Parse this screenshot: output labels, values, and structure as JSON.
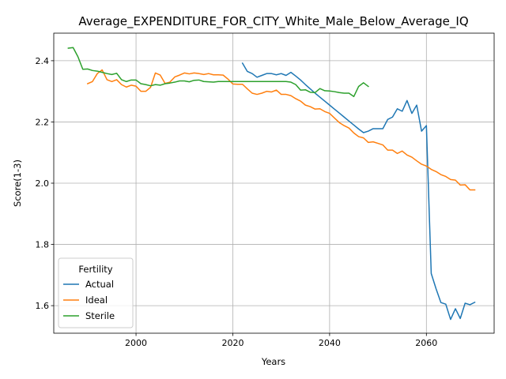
{
  "chart_data": {
    "type": "line",
    "title": "Average_EXPENDITURE_FOR_CITY_White_Male_Below_Average_IQ",
    "xlabel": "Years",
    "ylabel": "Score(1-3)",
    "xlim": [
      1983,
      2074
    ],
    "ylim": [
      1.51,
      2.49
    ],
    "xticks": [
      2000,
      2020,
      2040,
      2060
    ],
    "yticks": [
      1.6,
      1.8,
      2.0,
      2.2,
      2.4
    ],
    "xtick_labels": [
      "2000",
      "2020",
      "2040",
      "2060"
    ],
    "ytick_labels": [
      "1.6",
      "1.8",
      "2.0",
      "2.2",
      "2.4"
    ],
    "grid": true,
    "legend": {
      "title": "Fertility",
      "position": "lower-left"
    },
    "series": [
      {
        "name": "Actual",
        "color": "#1f77b4",
        "x": [
          2022,
          2023,
          2024,
          2025,
          2026,
          2027,
          2028,
          2029,
          2030,
          2031,
          2032,
          2033,
          2034,
          2035,
          2036,
          2037,
          2038,
          2039,
          2040,
          2041,
          2042,
          2043,
          2044,
          2045,
          2046,
          2047,
          2048,
          2049,
          2050,
          2051,
          2052,
          2053,
          2054,
          2055,
          2056,
          2057,
          2058,
          2059,
          2060,
          2061,
          2062,
          2063,
          2064,
          2065,
          2066,
          2067,
          2068,
          2069,
          2070
        ],
        "y": [
          2.392,
          2.365,
          2.358,
          2.346,
          2.352,
          2.358,
          2.358,
          2.354,
          2.358,
          2.352,
          2.362,
          2.35,
          2.337,
          2.322,
          2.308,
          2.294,
          2.281,
          2.268,
          2.255,
          2.242,
          2.229,
          2.216,
          2.203,
          2.19,
          2.177,
          2.165,
          2.17,
          2.178,
          2.178,
          2.178,
          2.208,
          2.216,
          2.243,
          2.235,
          2.27,
          2.228,
          2.255,
          2.17,
          2.188,
          1.705,
          1.655,
          1.61,
          1.605,
          1.555,
          1.59,
          1.558,
          1.608,
          1.603,
          1.611
        ]
      },
      {
        "name": "Ideal",
        "color": "#ff7f0e",
        "x": [
          1990,
          1991,
          1992,
          1993,
          1994,
          1995,
          1996,
          1997,
          1998,
          1999,
          2000,
          2001,
          2002,
          2003,
          2004,
          2005,
          2006,
          2007,
          2008,
          2009,
          2010,
          2011,
          2012,
          2013,
          2014,
          2015,
          2016,
          2017,
          2018,
          2019,
          2020,
          2021,
          2022,
          2023,
          2024,
          2025,
          2026,
          2027,
          2028,
          2029,
          2030,
          2031,
          2032,
          2033,
          2034,
          2035,
          2036,
          2037,
          2038,
          2039,
          2040,
          2041,
          2042,
          2043,
          2044,
          2045,
          2046,
          2047,
          2048,
          2049,
          2050,
          2051,
          2052,
          2053,
          2054,
          2055,
          2056,
          2057,
          2058,
          2059,
          2060,
          2061,
          2062,
          2063,
          2064,
          2065,
          2066,
          2067,
          2068,
          2069,
          2070
        ],
        "y": [
          2.325,
          2.332,
          2.358,
          2.37,
          2.338,
          2.332,
          2.338,
          2.322,
          2.314,
          2.32,
          2.317,
          2.3,
          2.3,
          2.313,
          2.36,
          2.353,
          2.326,
          2.33,
          2.347,
          2.353,
          2.36,
          2.357,
          2.36,
          2.358,
          2.355,
          2.358,
          2.354,
          2.354,
          2.353,
          2.34,
          2.324,
          2.323,
          2.323,
          2.308,
          2.294,
          2.29,
          2.294,
          2.3,
          2.298,
          2.304,
          2.29,
          2.29,
          2.286,
          2.276,
          2.268,
          2.255,
          2.25,
          2.242,
          2.243,
          2.234,
          2.228,
          2.213,
          2.198,
          2.188,
          2.18,
          2.164,
          2.152,
          2.148,
          2.133,
          2.135,
          2.13,
          2.125,
          2.108,
          2.108,
          2.097,
          2.105,
          2.092,
          2.085,
          2.073,
          2.062,
          2.056,
          2.045,
          2.038,
          2.028,
          2.022,
          2.012,
          2.01,
          1.994,
          1.995,
          1.978,
          1.978
        ]
      },
      {
        "name": "Sterile",
        "color": "#2ca02c",
        "x": [
          1986,
          1987,
          1988,
          1989,
          1990,
          1991,
          1992,
          1993,
          1994,
          1995,
          1996,
          1997,
          1998,
          1999,
          2000,
          2001,
          2002,
          2003,
          2004,
          2005,
          2006,
          2007,
          2008,
          2009,
          2010,
          2011,
          2012,
          2013,
          2014,
          2015,
          2016,
          2017,
          2018,
          2019,
          2020,
          2021,
          2022,
          2023,
          2024,
          2025,
          2026,
          2027,
          2028,
          2029,
          2030,
          2031,
          2032,
          2033,
          2034,
          2035,
          2036,
          2037,
          2038,
          2039,
          2040,
          2041,
          2042,
          2043,
          2044,
          2045,
          2046,
          2047,
          2048
        ],
        "y": [
          2.441,
          2.443,
          2.413,
          2.372,
          2.373,
          2.368,
          2.366,
          2.362,
          2.358,
          2.355,
          2.359,
          2.338,
          2.332,
          2.337,
          2.337,
          2.325,
          2.322,
          2.318,
          2.322,
          2.32,
          2.325,
          2.327,
          2.33,
          2.334,
          2.334,
          2.331,
          2.336,
          2.337,
          2.332,
          2.331,
          2.33,
          2.332,
          2.332,
          2.332,
          2.332,
          2.332,
          2.332,
          2.332,
          2.332,
          2.332,
          2.332,
          2.332,
          2.332,
          2.332,
          2.332,
          2.332,
          2.33,
          2.322,
          2.304,
          2.305,
          2.297,
          2.296,
          2.309,
          2.302,
          2.301,
          2.299,
          2.296,
          2.294,
          2.294,
          2.283,
          2.316,
          2.328,
          2.316
        ]
      }
    ]
  }
}
